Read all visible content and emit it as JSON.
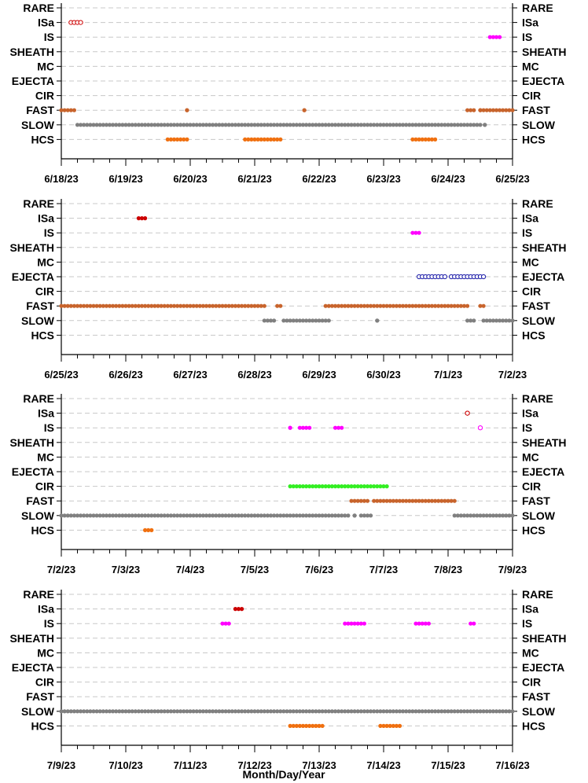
{
  "chart_data": {
    "type": "scatter",
    "xlabel": "Month/Day/Year",
    "categories": [
      "RARE",
      "ISa",
      "IS",
      "SHEATH",
      "MC",
      "EJECTA",
      "CIR",
      "FAST",
      "SLOW",
      "HCS"
    ],
    "colors": {
      "RARE": "#888888",
      "ISa": "#cc0000",
      "IS": "#ff00ff",
      "SHEATH": "#888888",
      "MC": "#888888",
      "EJECTA": "#1a1aa8",
      "CIR": "#33ee22",
      "FAST": "#c8642c",
      "SLOW": "#808080",
      "HCS": "#f07010"
    },
    "panels": [
      {
        "x_start": "2023-06-18",
        "xlim": [
          0,
          7
        ],
        "tick_labels": [
          "6/18/23",
          "6/19/23",
          "6/20/23",
          "6/21/23",
          "6/22/23",
          "6/23/23",
          "6/24/23",
          "6/25/23"
        ],
        "series": [
          {
            "category": "ISa",
            "segments": [
              [
                0.15,
                0.3
              ]
            ],
            "hollow": true
          },
          {
            "category": "IS",
            "segments": [
              [
                6.65,
                6.8
              ]
            ]
          },
          {
            "category": "FAST",
            "segments": [
              [
                0.0,
                0.2
              ],
              [
                1.95,
                1.95
              ],
              [
                3.77,
                3.77
              ],
              [
                6.3,
                6.4
              ],
              [
                6.5,
                6.5
              ],
              [
                6.55,
                7.0
              ]
            ]
          },
          {
            "category": "SLOW",
            "segments": [
              [
                0.25,
                1.95
              ],
              [
                2.0,
                3.75
              ],
              [
                3.8,
                6.35
              ],
              [
                6.4,
                6.5
              ],
              [
                6.57,
                6.57
              ]
            ]
          },
          {
            "category": "HCS",
            "segments": [
              [
                1.65,
                1.95
              ],
              [
                2.85,
                3.4
              ],
              [
                5.45,
                5.8
              ]
            ]
          }
        ]
      },
      {
        "x_start": "2023-06-25",
        "xlim": [
          0,
          7
        ],
        "tick_labels": [
          "6/25/23",
          "6/26/23",
          "6/27/23",
          "6/28/23",
          "6/29/23",
          "6/30/23",
          "7/1/23",
          "7/2/23"
        ],
        "series": [
          {
            "category": "ISa",
            "segments": [
              [
                1.2,
                1.3
              ]
            ]
          },
          {
            "category": "IS",
            "segments": [
              [
                5.45,
                5.55
              ]
            ]
          },
          {
            "category": "EJECTA",
            "segments": [
              [
                5.55,
                5.95
              ],
              [
                6.05,
                6.55
              ]
            ],
            "hollow": true
          },
          {
            "category": "FAST",
            "segments": [
              [
                0.0,
                3.15
              ],
              [
                3.35,
                3.4
              ],
              [
                4.1,
                4.9
              ],
              [
                4.95,
                6.3
              ],
              [
                6.5,
                6.55
              ]
            ]
          },
          {
            "category": "SLOW",
            "segments": [
              [
                3.15,
                3.3
              ],
              [
                3.45,
                4.15
              ],
              [
                4.9,
                4.9
              ],
              [
                6.3,
                6.4
              ],
              [
                6.55,
                7.0
              ]
            ]
          }
        ]
      },
      {
        "x_start": "2023-07-02",
        "xlim": [
          0,
          7
        ],
        "tick_labels": [
          "7/2/23",
          "7/3/23",
          "7/4/23",
          "7/5/23",
          "7/6/23",
          "7/7/23",
          "7/8/23",
          "7/9/23"
        ],
        "series": [
          {
            "category": "ISa",
            "segments": [
              [
                6.3,
                6.3
              ]
            ],
            "hollow": true
          },
          {
            "category": "IS",
            "segments": [
              [
                3.55,
                3.55
              ],
              [
                3.7,
                3.85
              ],
              [
                4.25,
                4.35
              ]
            ]
          },
          {
            "category": "IS",
            "segments": [
              [
                6.5,
                6.5
              ]
            ],
            "hollow": true
          },
          {
            "category": "CIR",
            "segments": [
              [
                3.55,
                5.05
              ]
            ]
          },
          {
            "category": "FAST",
            "segments": [
              [
                4.5,
                4.6
              ],
              [
                4.65,
                4.75
              ],
              [
                4.85,
                6.1
              ]
            ]
          },
          {
            "category": "SLOW",
            "segments": [
              [
                0.0,
                4.45
              ],
              [
                4.55,
                4.55
              ],
              [
                4.65,
                4.8
              ],
              [
                6.1,
                7.0
              ]
            ]
          },
          {
            "category": "HCS",
            "segments": [
              [
                1.3,
                1.4
              ]
            ]
          }
        ]
      },
      {
        "x_start": "2023-07-09",
        "xlim": [
          0,
          7
        ],
        "tick_labels": [
          "7/9/23",
          "7/10/23",
          "7/11/23",
          "7/12/23",
          "7/13/23",
          "7/14/23",
          "7/15/23",
          "7/16/23"
        ],
        "series": [
          {
            "category": "ISa",
            "segments": [
              [
                2.7,
                2.8
              ]
            ]
          },
          {
            "category": "IS",
            "segments": [
              [
                2.5,
                2.6
              ],
              [
                4.4,
                4.7
              ],
              [
                5.5,
                5.7
              ],
              [
                6.35,
                6.4
              ]
            ]
          },
          {
            "category": "SLOW",
            "segments": [
              [
                0.0,
                7.0
              ]
            ]
          },
          {
            "category": "HCS",
            "segments": [
              [
                3.55,
                4.05
              ],
              [
                4.95,
                5.25
              ]
            ]
          }
        ]
      }
    ]
  }
}
